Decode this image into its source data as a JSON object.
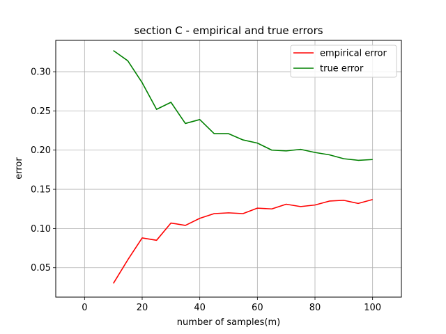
{
  "chart_data": {
    "type": "line",
    "title": "section C - empirical and true errors",
    "xlabel": "number of samples(m)",
    "ylabel": "error",
    "xlim": [
      -10,
      110
    ],
    "ylim": [
      0.0125,
      0.34
    ],
    "xticks": [
      0,
      20,
      40,
      60,
      80,
      100
    ],
    "yticks": [
      0.05,
      0.1,
      0.15,
      0.2,
      0.25,
      0.3
    ],
    "xtick_labels": [
      "0",
      "20",
      "40",
      "60",
      "80",
      "100"
    ],
    "ytick_labels": [
      "0.05",
      "0.10",
      "0.15",
      "0.20",
      "0.25",
      "0.30"
    ],
    "grid": true,
    "legend_position": "top-right",
    "x": [
      10,
      15,
      20,
      25,
      30,
      35,
      40,
      45,
      50,
      55,
      60,
      65,
      70,
      75,
      80,
      85,
      90,
      95,
      100
    ],
    "series": [
      {
        "name": "empirical error",
        "color": "#ff0000",
        "values": [
          0.03,
          0.06,
          0.088,
          0.085,
          0.107,
          0.104,
          0.113,
          0.119,
          0.12,
          0.119,
          0.126,
          0.125,
          0.131,
          0.128,
          0.13,
          0.135,
          0.136,
          0.132,
          0.137
        ]
      },
      {
        "name": "true error",
        "color": "#008000",
        "values": [
          0.327,
          0.314,
          0.286,
          0.252,
          0.261,
          0.234,
          0.239,
          0.221,
          0.221,
          0.213,
          0.209,
          0.2,
          0.199,
          0.201,
          0.197,
          0.194,
          0.189,
          0.187,
          0.188
        ]
      }
    ]
  }
}
